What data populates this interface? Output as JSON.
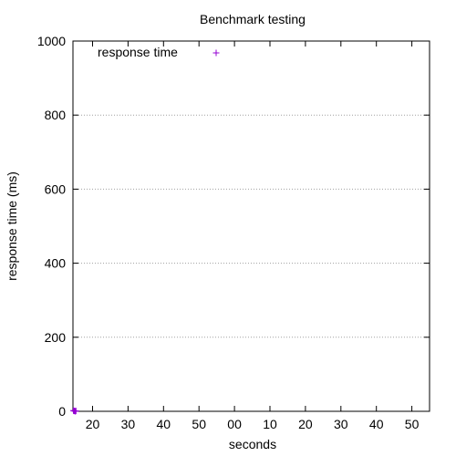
{
  "chart_data": {
    "type": "scatter",
    "title": "Benchmark testing",
    "xlabel": "seconds",
    "ylabel": "response time (ms)",
    "ylim": [
      0,
      1000
    ],
    "y_ticks": [
      0,
      200,
      400,
      600,
      800,
      1000
    ],
    "x_tick_labels": [
      "20",
      "30",
      "40",
      "50",
      "00",
      "10",
      "20",
      "30",
      "40",
      "50"
    ],
    "grid": "horizontal dotted",
    "legend_position": "top-left",
    "series": [
      {
        "name": "response time",
        "color": "#9400d3",
        "marker": "plus",
        "values": [
          2,
          1,
          1,
          0,
          1
        ]
      }
    ]
  }
}
